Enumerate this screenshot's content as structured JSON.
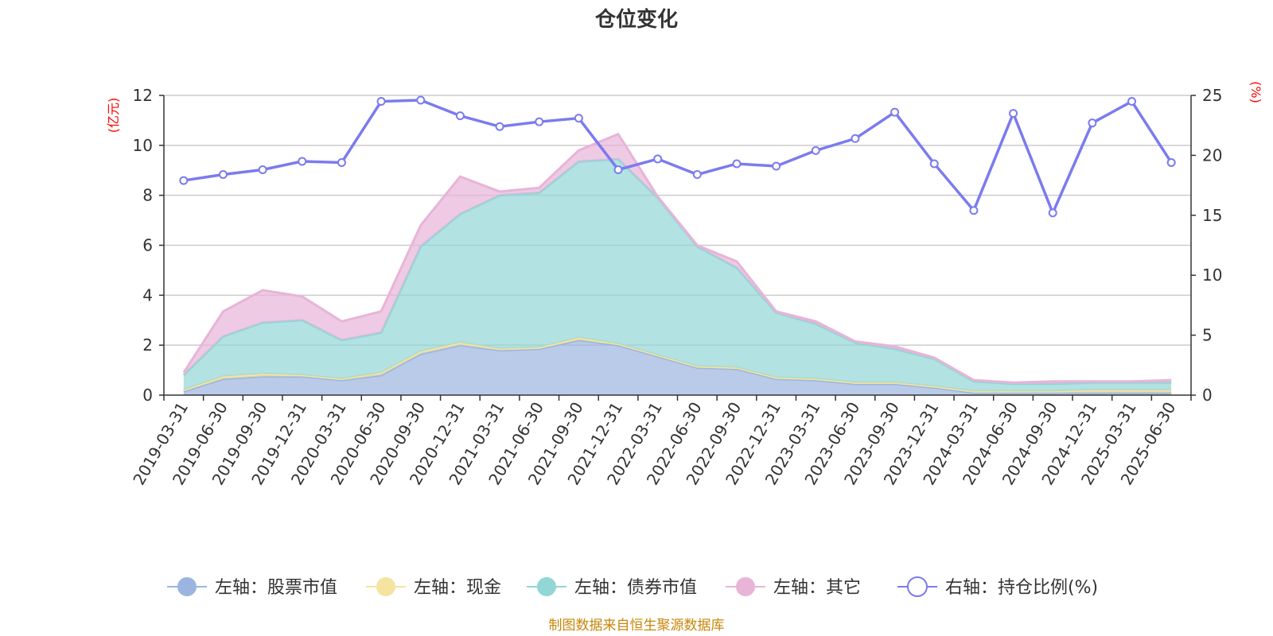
{
  "chart_data": {
    "type": "area",
    "title": "仓位变化",
    "left_axis_unit": "(亿元)",
    "right_axis_unit": "(%)",
    "ylim_left": [
      0,
      12
    ],
    "ylim_right": [
      0,
      25
    ],
    "left_ticks": [
      "0",
      "2",
      "4",
      "6",
      "8",
      "10",
      "12"
    ],
    "right_ticks": [
      "0",
      "5",
      "10",
      "15",
      "20",
      "25"
    ],
    "grid": true,
    "legend_position": "bottom",
    "categories": [
      "2019-03-31",
      "2019-06-30",
      "2019-09-30",
      "2019-12-31",
      "2020-03-31",
      "2020-06-30",
      "2020-09-30",
      "2020-12-31",
      "2021-03-31",
      "2021-06-30",
      "2021-09-30",
      "2021-12-31",
      "2022-03-31",
      "2022-06-30",
      "2022-09-30",
      "2022-12-31",
      "2023-03-31",
      "2023-06-30",
      "2023-09-30",
      "2023-12-31",
      "2024-03-31",
      "2024-06-30",
      "2024-09-30",
      "2024-12-31",
      "2025-03-31",
      "2025-06-30"
    ],
    "series": [
      {
        "name": "左轴：股票市值",
        "axis": "left",
        "type": "area",
        "color": "#9bb5e0",
        "values": [
          0.15,
          0.65,
          0.75,
          0.75,
          0.6,
          0.8,
          1.65,
          2.0,
          1.8,
          1.85,
          2.2,
          2.0,
          1.55,
          1.1,
          1.05,
          0.65,
          0.6,
          0.45,
          0.45,
          0.3,
          0.1,
          0.1,
          0.1,
          0.1,
          0.1,
          0.1
        ]
      },
      {
        "name": "左轴：现金",
        "axis": "left",
        "type": "area",
        "color": "#f5e3a0",
        "values": [
          0.05,
          0.1,
          0.1,
          0.05,
          0.05,
          0.1,
          0.1,
          0.1,
          0.05,
          0.05,
          0.1,
          0.05,
          0.05,
          0.05,
          0.05,
          0.05,
          0.05,
          0.05,
          0.05,
          0.05,
          0.05,
          0.05,
          0.05,
          0.1,
          0.1,
          0.1
        ]
      },
      {
        "name": "左轴：债券市值",
        "axis": "left",
        "type": "area",
        "color": "#92d6d6",
        "values": [
          0.6,
          1.6,
          2.05,
          2.2,
          1.55,
          1.6,
          4.2,
          5.15,
          6.15,
          6.2,
          7.05,
          7.4,
          6.3,
          4.8,
          4.0,
          2.6,
          2.2,
          1.6,
          1.35,
          1.1,
          0.4,
          0.3,
          0.3,
          0.3,
          0.3,
          0.3
        ]
      },
      {
        "name": "左轴：其它",
        "axis": "left",
        "type": "area",
        "color": "#e8b4d8",
        "values": [
          0.1,
          1.0,
          1.3,
          0.95,
          0.75,
          0.85,
          0.85,
          1.5,
          0.15,
          0.2,
          0.45,
          1.0,
          0.05,
          0.05,
          0.25,
          0.05,
          0.1,
          0.05,
          0.1,
          0.05,
          0.05,
          0.05,
          0.1,
          0.05,
          0.05,
          0.1
        ]
      },
      {
        "name": "右轴：持仓比例(%)",
        "axis": "right",
        "type": "line",
        "color": "#7b7bef",
        "values": [
          17.9,
          18.4,
          18.8,
          19.5,
          19.4,
          24.5,
          24.6,
          23.3,
          22.4,
          22.8,
          23.1,
          18.8,
          19.7,
          18.4,
          19.3,
          19.1,
          20.4,
          21.4,
          23.6,
          19.3,
          15.4,
          23.5,
          15.2,
          22.7,
          24.5,
          19.4
        ]
      }
    ]
  },
  "footer": {
    "source": "制图数据来自恒生聚源数据库"
  }
}
